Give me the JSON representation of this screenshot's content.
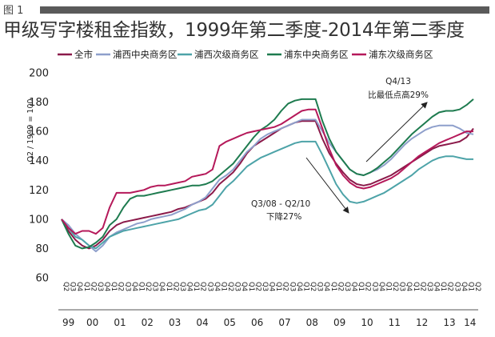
{
  "figure_label": "图 1",
  "title": "甲级写字楼租金指数，1999年第二季度-2014年第二季度",
  "chart_data": {
    "type": "line",
    "ylabel": "Q2 / 1999 = 100",
    "ylim": [
      60,
      200
    ],
    "yticks": [
      60,
      80,
      100,
      120,
      140,
      160,
      180,
      200
    ],
    "quarter_labels": [
      "Q2",
      "Q3",
      "Q4",
      "Q1",
      "Q2",
      "Q3",
      "Q4",
      "Q1",
      "Q2",
      "Q3",
      "Q4",
      "Q1",
      "Q2",
      "Q3",
      "Q4",
      "Q1",
      "Q2",
      "Q3",
      "Q4",
      "Q1",
      "Q2",
      "Q3",
      "Q4",
      "Q1",
      "Q2",
      "Q3",
      "Q4",
      "Q1",
      "Q2",
      "Q3",
      "Q4",
      "Q1",
      "Q2",
      "Q3",
      "Q4",
      "Q1",
      "Q2",
      "Q3",
      "Q4",
      "Q1",
      "Q2",
      "Q3",
      "Q4",
      "Q1",
      "Q2",
      "Q3",
      "Q4",
      "Q1",
      "Q2",
      "Q3",
      "Q4",
      "Q1",
      "Q2",
      "Q3",
      "Q4",
      "Q1",
      "Q2",
      "Q3",
      "Q4",
      "Q1",
      "Q2"
    ],
    "year_groups": [
      {
        "label": "99",
        "start": 0,
        "end": 2
      },
      {
        "label": "00",
        "start": 3,
        "end": 6
      },
      {
        "label": "01",
        "start": 7,
        "end": 10
      },
      {
        "label": "02",
        "start": 11,
        "end": 14
      },
      {
        "label": "03",
        "start": 15,
        "end": 18
      },
      {
        "label": "04",
        "start": 19,
        "end": 22
      },
      {
        "label": "05",
        "start": 23,
        "end": 26
      },
      {
        "label": "06",
        "start": 27,
        "end": 30
      },
      {
        "label": "07",
        "start": 31,
        "end": 34
      },
      {
        "label": "08",
        "start": 35,
        "end": 38
      },
      {
        "label": "09",
        "start": 39,
        "end": 42
      },
      {
        "label": "10",
        "start": 43,
        "end": 46
      },
      {
        "label": "11",
        "start": 47,
        "end": 50
      },
      {
        "label": "12",
        "start": 51,
        "end": 54
      },
      {
        "label": "13",
        "start": 55,
        "end": 58
      },
      {
        "label": "14",
        "start": 59,
        "end": 60
      }
    ],
    "series": [
      {
        "name": "全市",
        "color": "#8B1A4A",
        "values": [
          100,
          92,
          86,
          82,
          80,
          82,
          86,
          92,
          96,
          98,
          99,
          100,
          101,
          102,
          103,
          104,
          105,
          107,
          108,
          110,
          112,
          114,
          118,
          124,
          128,
          132,
          138,
          145,
          150,
          153,
          156,
          159,
          162,
          164,
          166,
          167,
          167,
          167,
          155,
          145,
          138,
          132,
          127,
          124,
          123,
          124,
          126,
          128,
          130,
          133,
          136,
          139,
          142,
          145,
          148,
          150,
          151,
          152,
          153,
          156,
          162
        ]
      },
      {
        "name": "浦西中央商务区",
        "color": "#8E9FCB",
        "values": [
          100,
          96,
          90,
          86,
          82,
          78,
          82,
          88,
          91,
          93,
          95,
          97,
          98,
          100,
          101,
          102,
          103,
          105,
          107,
          110,
          112,
          115,
          121,
          127,
          130,
          134,
          140,
          146,
          150,
          155,
          158,
          160,
          162,
          164,
          166,
          168,
          168,
          168,
          160,
          152,
          146,
          140,
          134,
          131,
          130,
          132,
          134,
          137,
          141,
          146,
          151,
          155,
          158,
          161,
          163,
          164,
          164,
          164,
          162,
          159,
          158
        ]
      },
      {
        "name": "浦西次级商务区",
        "color": "#4DA3A8",
        "values": [
          100,
          94,
          88,
          86,
          82,
          80,
          84,
          88,
          90,
          92,
          93,
          94,
          95,
          96,
          97,
          98,
          99,
          100,
          102,
          104,
          106,
          107,
          110,
          116,
          122,
          126,
          131,
          136,
          139,
          142,
          144,
          146,
          148,
          150,
          152,
          153,
          153,
          153,
          144,
          134,
          124,
          117,
          112,
          111,
          112,
          114,
          116,
          118,
          121,
          124,
          127,
          130,
          134,
          137,
          140,
          142,
          143,
          143,
          142,
          141,
          141
        ]
      },
      {
        "name": "浦东中央商务区",
        "color": "#1E7B4F",
        "values": [
          100,
          90,
          82,
          80,
          81,
          84,
          88,
          96,
          100,
          108,
          114,
          116,
          116,
          117,
          118,
          119,
          120,
          121,
          122,
          123,
          123,
          124,
          126,
          130,
          134,
          138,
          144,
          150,
          156,
          161,
          164,
          168,
          174,
          179,
          181,
          182,
          182,
          182,
          167,
          155,
          146,
          140,
          134,
          131,
          130,
          132,
          135,
          139,
          143,
          148,
          153,
          158,
          162,
          166,
          170,
          173,
          174,
          174,
          175,
          178,
          182
        ]
      },
      {
        "name": "浦东次级商务区",
        "color": "#B5195A",
        "values": [
          100,
          94,
          90,
          92,
          92,
          90,
          94,
          108,
          118,
          118,
          118,
          119,
          120,
          122,
          123,
          123,
          124,
          125,
          126,
          129,
          130,
          131,
          134,
          150,
          153,
          155,
          157,
          159,
          160,
          161,
          162,
          163,
          165,
          168,
          171,
          174,
          175,
          175,
          162,
          148,
          137,
          130,
          125,
          122,
          121,
          122,
          124,
          126,
          128,
          131,
          135,
          139,
          143,
          146,
          149,
          152,
          154,
          156,
          158,
          160,
          160
        ]
      }
    ],
    "annotations": [
      {
        "lines": [
          "Q4/13",
          "比最低点高29%"
        ]
      },
      {
        "lines": [
          "Q3/08 - Q2/10",
          "下降27%"
        ]
      }
    ]
  }
}
